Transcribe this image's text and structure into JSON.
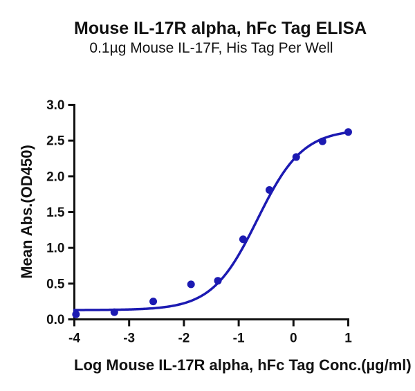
{
  "chart_data": {
    "type": "scatter",
    "title": "Mouse IL-17R alpha, hFc Tag ELISA",
    "subtitle": "0.1µg Mouse IL-17F, His Tag Per Well",
    "xlabel": "Log Mouse IL-17R alpha, hFc Tag Conc.(µg/ml)",
    "ylabel": "Mean Abs.(OD450)",
    "xlim": [
      -4,
      1
    ],
    "ylim": [
      0,
      3
    ],
    "x_ticks": [
      "-4",
      "-3",
      "-2",
      "-1",
      "0",
      "1"
    ],
    "y_ticks": [
      "0.0",
      "0.5",
      "1.0",
      "1.5",
      "2.0",
      "2.5",
      "3.0"
    ],
    "grid": false,
    "legend": "none",
    "points": [
      {
        "x": -3.97,
        "y": 0.07
      },
      {
        "x": -3.27,
        "y": 0.1
      },
      {
        "x": -2.56,
        "y": 0.25
      },
      {
        "x": -1.87,
        "y": 0.49
      },
      {
        "x": -1.38,
        "y": 0.54
      },
      {
        "x": -0.92,
        "y": 1.12
      },
      {
        "x": -0.44,
        "y": 1.81
      },
      {
        "x": 0.05,
        "y": 2.27
      },
      {
        "x": 0.53,
        "y": 2.49
      },
      {
        "x": 1.0,
        "y": 2.62
      }
    ],
    "curve_fit": {
      "model": "4PL",
      "bottom": 0.13,
      "top": 2.66,
      "log_ec50": -0.66,
      "hill": 1.05
    },
    "colors": {
      "series": "#1c1ab2",
      "axis": "#111111",
      "background": "#ffffff"
    }
  }
}
